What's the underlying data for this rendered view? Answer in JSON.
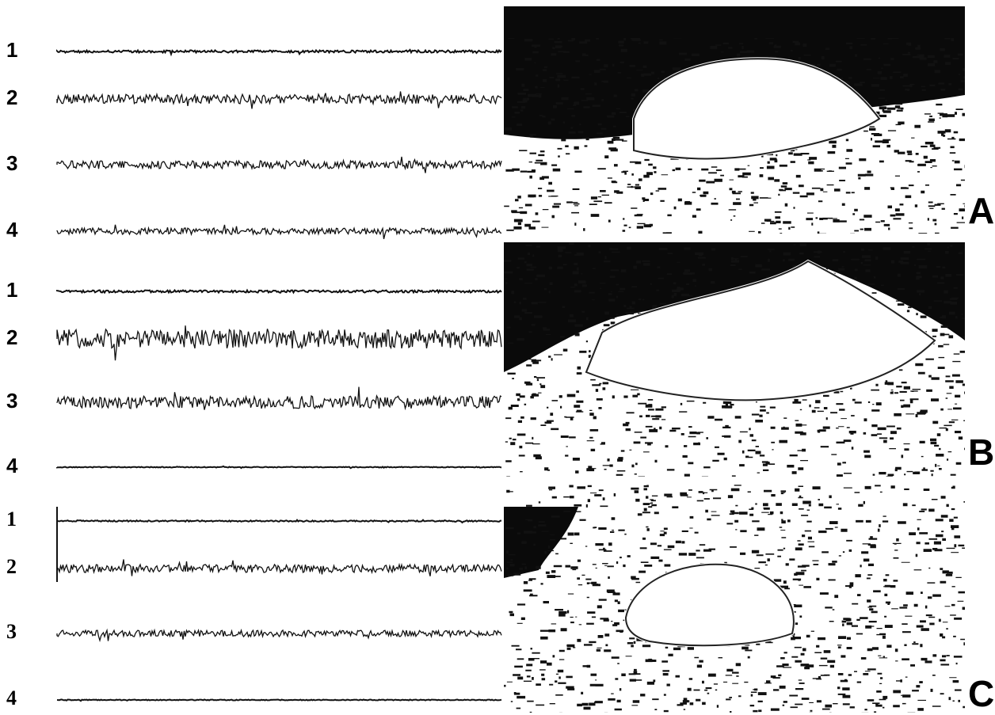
{
  "panels": [
    {
      "letter": "A",
      "channels": [
        "1",
        "2",
        "3",
        "4"
      ]
    },
    {
      "letter": "B",
      "channels": [
        "1",
        "2",
        "3",
        "4"
      ]
    },
    {
      "letter": "C",
      "channels": [
        "1",
        "2",
        "3",
        "4"
      ]
    }
  ]
}
